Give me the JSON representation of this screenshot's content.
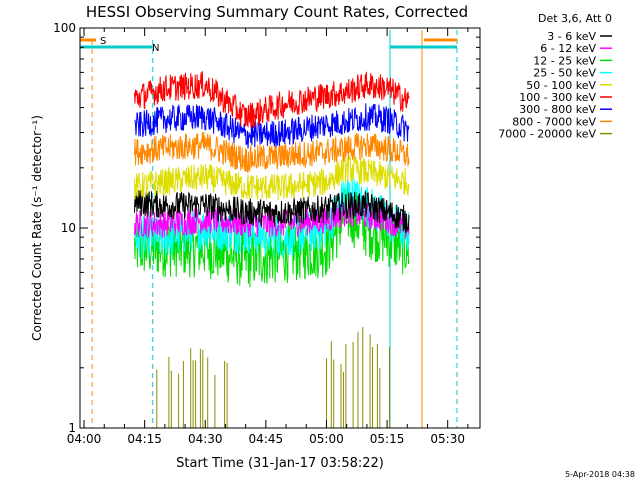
{
  "chart_data": {
    "type": "line",
    "title": "HESSI Observing Summary Count Rates, Corrected",
    "xlabel": "Start Time (31-Jan-17 03:58:22)",
    "ylabel": "Corrected Count Rate (s⁻¹ detector⁻¹)",
    "yscale": "log",
    "ylim": [
      1,
      100
    ],
    "xlim_minutes": [
      -1.0,
      98.0
    ],
    "x_ticks": [
      {
        "t": 0,
        "label": "04:00"
      },
      {
        "t": 15,
        "label": "04:15"
      },
      {
        "t": 30,
        "label": "04:30"
      },
      {
        "t": 45,
        "label": "04:45"
      },
      {
        "t": 60,
        "label": "05:00"
      },
      {
        "t": 75,
        "label": "05:15"
      },
      {
        "t": 90,
        "label": "05:30"
      }
    ],
    "y_ticks": [
      {
        "v": 1,
        "label": "1"
      },
      {
        "v": 10,
        "label": "10"
      },
      {
        "v": 100,
        "label": "100"
      }
    ],
    "legend_header": "Det 3,6, Att 0",
    "legend_placement": "top-right, outside plot",
    "series": [
      {
        "name": "3 - 6 keV",
        "color": "#000000",
        "x": [
          12,
          20,
          30,
          40,
          50,
          60,
          65,
          70,
          75,
          80
        ],
        "y": [
          13.5,
          13,
          13,
          12,
          12,
          12.5,
          13,
          13,
          12,
          11
        ]
      },
      {
        "name": "6 - 12 keV",
        "color": "#ff00ff",
        "x": [
          12,
          20,
          30,
          40,
          50,
          60,
          65,
          70,
          75,
          80
        ],
        "y": [
          10.5,
          10.5,
          11,
          10.5,
          10.5,
          11,
          12,
          11.5,
          11,
          10
        ]
      },
      {
        "name": "12 - 25 keV",
        "color": "#00dd00",
        "x": [
          12,
          20,
          30,
          40,
          50,
          60,
          65,
          70,
          75,
          80
        ],
        "y": [
          8,
          8,
          8,
          7,
          7.5,
          8,
          12,
          10,
          9,
          8
        ]
      },
      {
        "name": "25 - 50 keV",
        "color": "#00ffff",
        "x": [
          12,
          20,
          30,
          40,
          50,
          60,
          65,
          70,
          75,
          80
        ],
        "y": [
          9,
          9,
          10,
          9.5,
          9,
          10,
          15,
          13,
          11,
          9.5
        ]
      },
      {
        "name": "50 - 100 keV",
        "color": "#dddd00",
        "x": [
          12,
          20,
          30,
          40,
          50,
          60,
          65,
          70,
          75,
          80
        ],
        "y": [
          16,
          17,
          18,
          16,
          16,
          17,
          20,
          19,
          18,
          17
        ]
      },
      {
        "name": "100 - 300 keV",
        "color": "#ff0000",
        "x": [
          12,
          20,
          30,
          40,
          50,
          60,
          65,
          70,
          75,
          80
        ],
        "y": [
          44,
          50,
          52,
          36,
          42,
          46,
          48,
          52,
          50,
          43
        ]
      },
      {
        "name": "300 - 800 keV",
        "color": "#0000ff",
        "x": [
          12,
          20,
          30,
          40,
          50,
          60,
          65,
          70,
          75,
          80
        ],
        "y": [
          32,
          35,
          36,
          29,
          30,
          33,
          34,
          36,
          35,
          31
        ]
      },
      {
        "name": "800 - 7000 keV",
        "color": "#ff8800",
        "x": [
          12,
          20,
          30,
          40,
          50,
          60,
          65,
          70,
          75,
          80
        ],
        "y": [
          24,
          25,
          26,
          22,
          23,
          24,
          25,
          26,
          25,
          23
        ]
      },
      {
        "name": "7000 - 20000 keV",
        "color": "#8b8b00",
        "x": [
          18,
          20,
          25,
          30,
          60,
          65,
          68,
          70,
          72,
          75
        ],
        "y": [
          2,
          1.9,
          2,
          1.8,
          2.2,
          2,
          2.5,
          2.6,
          2.2,
          2
        ]
      }
    ],
    "events": [
      {
        "label": "S",
        "color": "#ff8800",
        "t": 2.0
      },
      {
        "label": "N",
        "color": "#00cccc",
        "t": 17.0
      }
    ]
  },
  "footer_date": "5-Apr-2018 04:38"
}
